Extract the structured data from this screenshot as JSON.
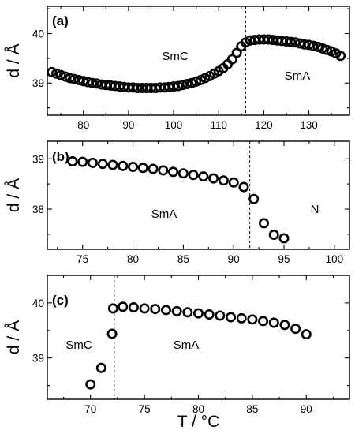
{
  "chart_data": [
    {
      "panel": "(a)",
      "type": "scatter",
      "xlim": [
        72,
        139
      ],
      "ylim": [
        38.35,
        40.55
      ],
      "xticks": [
        "80",
        "90",
        "100",
        "110",
        "120",
        "130"
      ],
      "yticks": [
        "39",
        "40"
      ],
      "ylabel": "d / Å",
      "transition_x": 116,
      "phases": [
        {
          "name": "SmC"
        },
        {
          "name": "SmA"
        }
      ],
      "series": [
        {
          "marker": "open-circle",
          "x": [
            73,
            74,
            75,
            76,
            77,
            78,
            79,
            80,
            81,
            82,
            83,
            84,
            85,
            86,
            87,
            88,
            89,
            90,
            91,
            92,
            93,
            94,
            95,
            96,
            97,
            98,
            99,
            100,
            101,
            102,
            103,
            104,
            105,
            106,
            107,
            108,
            109,
            110,
            111,
            112,
            113,
            114,
            115,
            116,
            117,
            118,
            119,
            120,
            121,
            122,
            123,
            124,
            125,
            126,
            127,
            128,
            129,
            130,
            131,
            132,
            133,
            134,
            135,
            136,
            137
          ],
          "y": [
            39.22,
            39.19,
            39.16,
            39.13,
            39.1,
            39.08,
            39.06,
            39.04,
            39.02,
            39.0,
            38.99,
            38.97,
            38.96,
            38.95,
            38.94,
            38.93,
            38.92,
            38.91,
            38.91,
            38.9,
            38.9,
            38.9,
            38.9,
            38.9,
            38.91,
            38.91,
            38.92,
            38.93,
            38.94,
            38.96,
            38.98,
            39.0,
            39.03,
            39.06,
            39.1,
            39.14,
            39.19,
            39.24,
            39.3,
            39.38,
            39.48,
            39.61,
            39.74,
            39.82,
            39.86,
            39.87,
            39.88,
            39.88,
            39.88,
            39.87,
            39.86,
            39.85,
            39.84,
            39.83,
            39.82,
            39.8,
            39.78,
            39.77,
            39.75,
            39.73,
            39.7,
            39.67,
            39.64,
            39.6,
            39.55
          ]
        }
      ]
    },
    {
      "panel": "(b)",
      "type": "scatter",
      "xlim": [
        71.5,
        101.5
      ],
      "ylim": [
        37.2,
        39.35
      ],
      "xticks": [
        "75",
        "80",
        "85",
        "90",
        "95",
        "100"
      ],
      "yticks": [
        "38",
        "39"
      ],
      "ylabel": "d / Å",
      "transition_x": 91.6,
      "phases": [
        {
          "name": "SmA"
        },
        {
          "name": "N"
        }
      ],
      "series": [
        {
          "marker": "open-circle",
          "x": [
            74,
            75,
            76,
            77,
            78,
            79,
            80,
            81,
            82,
            83,
            84,
            85,
            86,
            87,
            88,
            89,
            90,
            91,
            92,
            93,
            94,
            95
          ],
          "y": [
            38.95,
            38.94,
            38.92,
            38.9,
            38.88,
            38.86,
            38.84,
            38.82,
            38.8,
            38.77,
            38.74,
            38.71,
            38.68,
            38.65,
            38.61,
            38.57,
            38.53,
            38.44,
            38.2,
            37.72,
            37.49,
            37.42
          ]
        }
      ]
    },
    {
      "panel": "(c)",
      "type": "scatter",
      "xlim": [
        66,
        94
      ],
      "ylim": [
        38.25,
        40.5
      ],
      "xticks": [
        "70",
        "75",
        "80",
        "85",
        "90"
      ],
      "yticks": [
        "39",
        "40"
      ],
      "xlabel": "T / °C",
      "ylabel": "d / Å",
      "transition_x": 72.2,
      "phases": [
        {
          "name": "SmC"
        },
        {
          "name": "SmA"
        }
      ],
      "series": [
        {
          "marker": "open-circle",
          "x": [
            70,
            71,
            72,
            72.1,
            73,
            74,
            75,
            76,
            77,
            78,
            79,
            80,
            81,
            82,
            83,
            84,
            85,
            86,
            87,
            88,
            89,
            90
          ],
          "y": [
            38.52,
            38.82,
            39.44,
            39.9,
            39.93,
            39.92,
            39.9,
            39.89,
            39.87,
            39.85,
            39.83,
            39.81,
            39.79,
            39.77,
            39.74,
            39.72,
            39.7,
            39.67,
            39.64,
            39.6,
            39.53,
            39.43
          ]
        }
      ]
    }
  ]
}
